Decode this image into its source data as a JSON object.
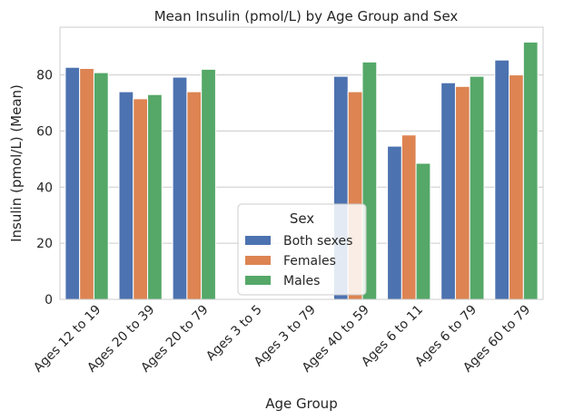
{
  "chart_data": {
    "type": "bar",
    "title": "Mean Insulin (pmol/L) by Age Group and Sex",
    "xlabel": "Age Group",
    "ylabel": "Insulin (pmol/L) (Mean)",
    "ylim": [
      0,
      97
    ],
    "yticks": [
      0,
      20,
      40,
      60,
      80
    ],
    "grid": "horizontal",
    "categories": [
      "Ages 12 to 19",
      "Ages 20 to 39",
      "Ages 20 to 79",
      "Ages 3 to 5",
      "Ages 3 to 79",
      "Ages 40 to 59",
      "Ages 6 to 11",
      "Ages 6 to 79",
      "Ages 60 to 79"
    ],
    "series": [
      {
        "name": "Both sexes",
        "color": "#4c72b0",
        "values": [
          82.7,
          74.0,
          79.2,
          null,
          null,
          79.5,
          54.6,
          77.2,
          85.3
        ]
      },
      {
        "name": "Females",
        "color": "#dd8452",
        "values": [
          82.3,
          71.5,
          74.0,
          null,
          null,
          74.0,
          58.6,
          75.9,
          80.0
        ]
      },
      {
        "name": "Males",
        "color": "#55a868",
        "values": [
          80.8,
          73.0,
          82.0,
          null,
          null,
          84.6,
          48.5,
          79.5,
          91.7
        ]
      }
    ],
    "legend": {
      "title": "Sex",
      "placement": "lower-center"
    }
  }
}
